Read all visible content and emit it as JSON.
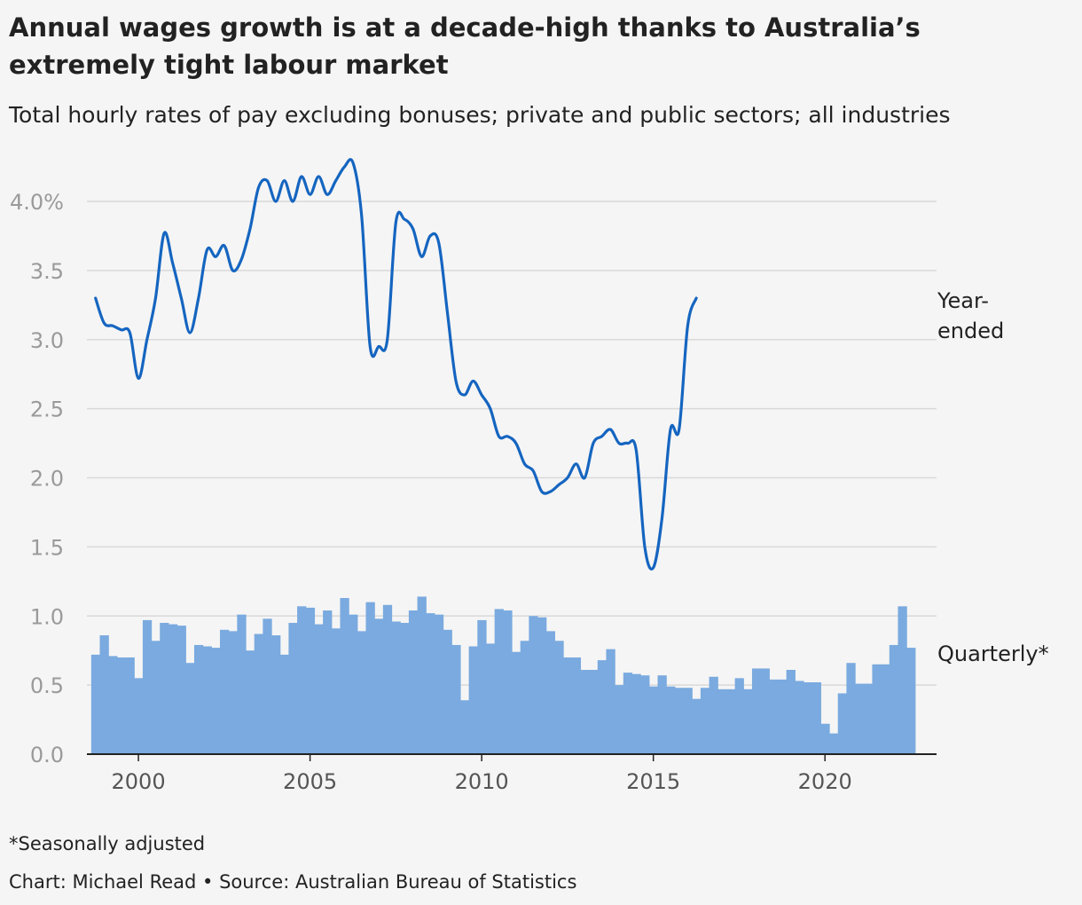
{
  "title": "Annual wages growth is at a decade-high thanks to Australia’s extremely tight labour market",
  "subtitle": "Total hourly rates of pay excluding bonuses; private and public sectors; all industries",
  "footnote": "*Seasonally adjusted",
  "credit": "Chart: Michael Read • Source: Australian Bureau of Statistics",
  "colors": {
    "line": "#1565c0",
    "bars": "#7aaadf",
    "grid": "#d9d9d9",
    "axis": "#222222"
  },
  "chart_data": {
    "type": "line",
    "xlim": [
      1998.5,
      2023.25
    ],
    "ylim": [
      0,
      4.0
    ],
    "grid": true,
    "y_ticks": [
      {
        "value": 4.0,
        "label": "4.0%"
      },
      {
        "value": 3.5,
        "label": "3.5"
      },
      {
        "value": 3.0,
        "label": "3.0"
      },
      {
        "value": 2.5,
        "label": "2.5"
      },
      {
        "value": 2.0,
        "label": "2.0"
      },
      {
        "value": 1.5,
        "label": "1.5"
      },
      {
        "value": 1.0,
        "label": "1.0"
      },
      {
        "value": 0.5,
        "label": "0.5"
      },
      {
        "value": 0.0,
        "label": "0.0"
      }
    ],
    "x_ticks": [
      {
        "value": 2000,
        "label": "2000"
      },
      {
        "value": 2005,
        "label": "2005"
      },
      {
        "value": 2010,
        "label": "2010"
      },
      {
        "value": 2015,
        "label": "2015"
      },
      {
        "value": 2020,
        "label": "2020"
      }
    ],
    "series": [
      {
        "name": "Year-ended",
        "type": "line",
        "start": 1998.75,
        "step": 0.25,
        "values": [
          3.3,
          3.12,
          3.1,
          3.07,
          3.05,
          2.72,
          3.0,
          3.3,
          3.77,
          3.55,
          3.3,
          3.05,
          3.3,
          3.65,
          3.6,
          3.68,
          3.5,
          3.58,
          3.8,
          4.1,
          4.15,
          4.0,
          4.15,
          4.0,
          4.18,
          4.05,
          4.18,
          4.05,
          4.15,
          4.25,
          4.28,
          3.9,
          2.95,
          2.95,
          3.0,
          3.85,
          3.87,
          3.8,
          3.6,
          3.75,
          3.7,
          3.2,
          2.7,
          2.6,
          2.7,
          2.6,
          2.5,
          2.3,
          2.3,
          2.25,
          2.1,
          2.05,
          1.9,
          1.9,
          1.95,
          2.0,
          2.1,
          2.0,
          2.25,
          2.3,
          2.35,
          2.25,
          2.25,
          2.2,
          1.5,
          1.35,
          1.7,
          2.35,
          2.35,
          3.1,
          3.3
        ]
      },
      {
        "name": "Quarterly*",
        "type": "bar",
        "start": 1998.75,
        "step": 0.25,
        "values": [
          0.72,
          0.86,
          0.71,
          0.7,
          0.7,
          0.55,
          0.97,
          0.82,
          0.95,
          0.94,
          0.93,
          0.66,
          0.79,
          0.78,
          0.77,
          0.9,
          0.89,
          1.01,
          0.75,
          0.87,
          0.98,
          0.86,
          0.72,
          0.95,
          1.07,
          1.06,
          0.94,
          1.04,
          0.91,
          1.13,
          1.01,
          0.89,
          1.1,
          0.98,
          1.08,
          0.96,
          0.95,
          1.04,
          1.14,
          1.02,
          1.01,
          0.9,
          0.79,
          0.39,
          0.78,
          0.97,
          0.8,
          1.05,
          1.04,
          0.74,
          0.82,
          1.0,
          0.99,
          0.89,
          0.82,
          0.7,
          0.7,
          0.61,
          0.61,
          0.68,
          0.76,
          0.5,
          0.59,
          0.58,
          0.57,
          0.49,
          0.57,
          0.49,
          0.48,
          0.48,
          0.4,
          0.48,
          0.56,
          0.47,
          0.47,
          0.55,
          0.47,
          0.62,
          0.62,
          0.54,
          0.54,
          0.61,
          0.53,
          0.52,
          0.52,
          0.22,
          0.15,
          0.44,
          0.66,
          0.51,
          0.51,
          0.65,
          0.65,
          0.79,
          1.07,
          0.77
        ]
      }
    ]
  }
}
